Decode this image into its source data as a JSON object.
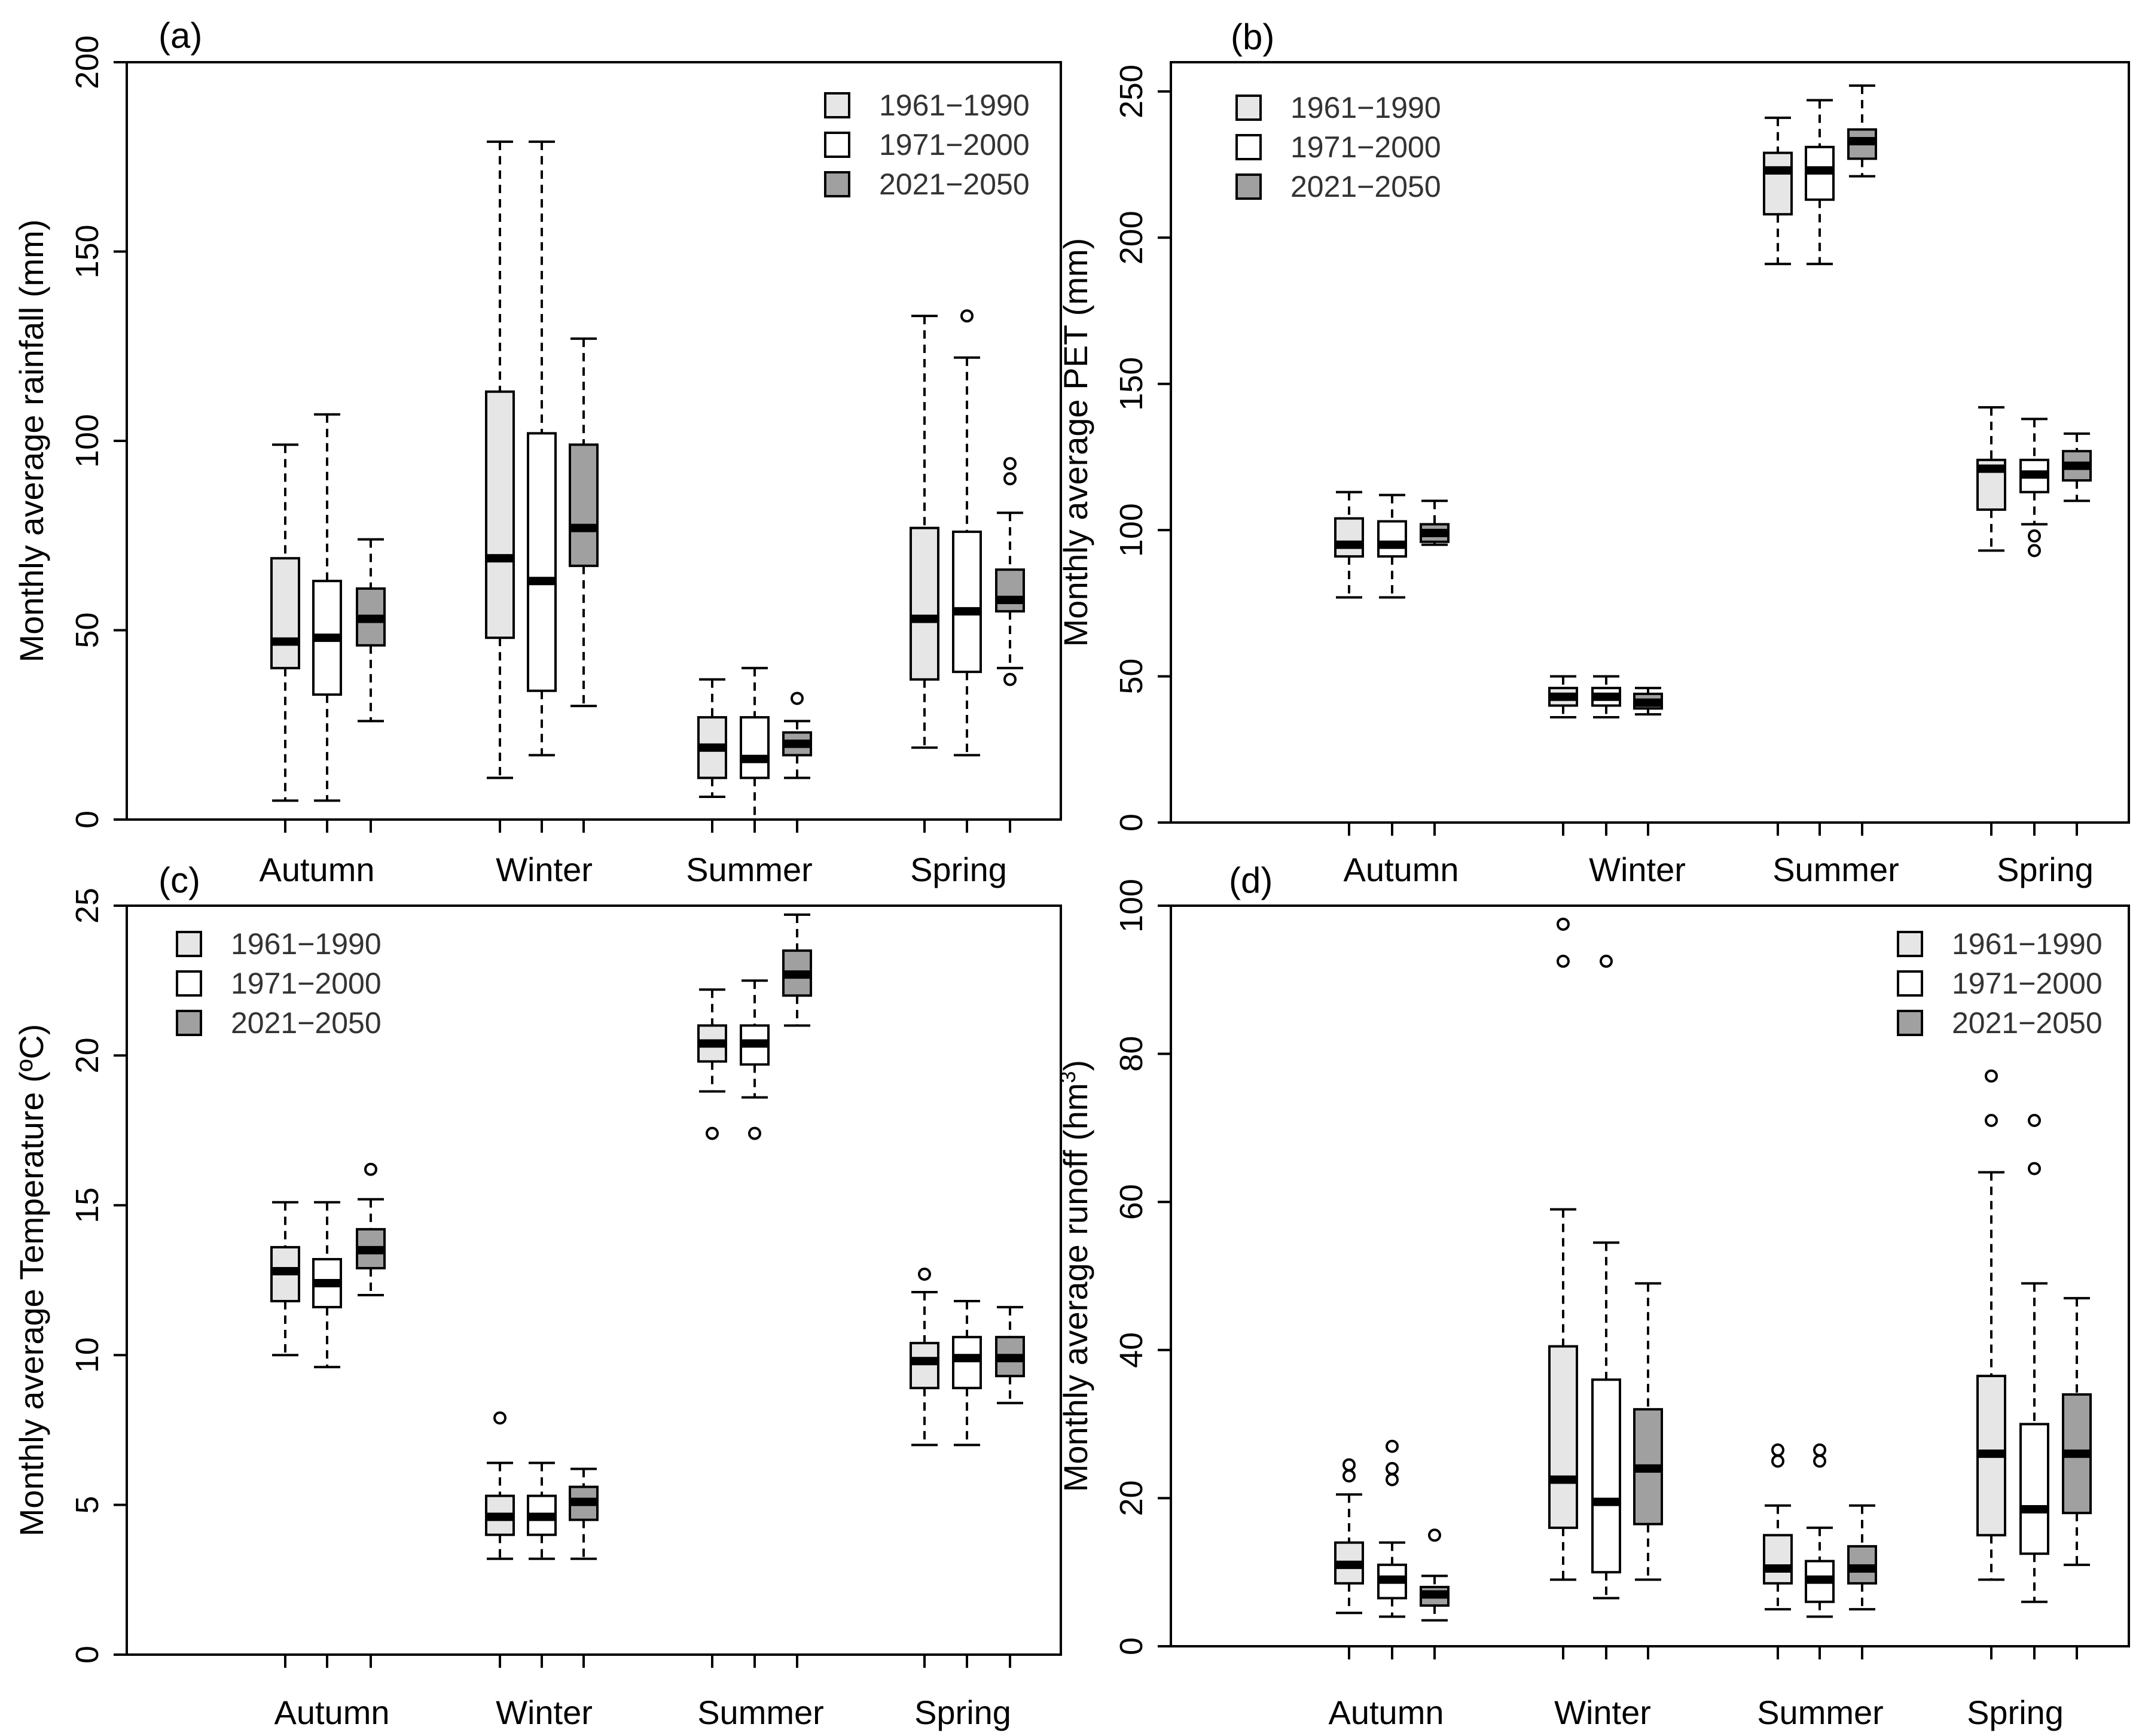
{
  "legend": {
    "entries": [
      {
        "label": "1961−1990",
        "color": "#e6e6e6"
      },
      {
        "label": "1971−2000",
        "color": "#ffffff"
      },
      {
        "label": "2021−2050",
        "color": "#a0a0a0"
      }
    ]
  },
  "categories": [
    "Autumn",
    "Winter",
    "Summer",
    "Spring"
  ],
  "chart_data": [
    {
      "type": "boxplot",
      "panel": "(a)",
      "ylabel": "Monthly average rainfall (mm)",
      "ylim": [
        0,
        200
      ],
      "yticks": [
        0,
        50,
        100,
        150,
        200
      ],
      "legend_position": "top-right",
      "series_names": [
        "1961−1990",
        "1971−2000",
        "2021−2050"
      ],
      "boxes": [
        [
          {
            "min": 5,
            "q1": 40,
            "median": 47,
            "q3": 69,
            "max": 99,
            "outliers": []
          },
          {
            "min": 5,
            "q1": 33,
            "median": 48,
            "q3": 63,
            "max": 107,
            "outliers": []
          },
          {
            "min": 26,
            "q1": 46,
            "median": 53,
            "q3": 61,
            "max": 74,
            "outliers": []
          }
        ],
        [
          {
            "min": 11,
            "q1": 48,
            "median": 69,
            "q3": 113,
            "max": 179,
            "outliers": []
          },
          {
            "min": 17,
            "q1": 34,
            "median": 63,
            "q3": 102,
            "max": 179,
            "outliers": []
          },
          {
            "min": 30,
            "q1": 67,
            "median": 77,
            "q3": 99,
            "max": 127,
            "outliers": []
          }
        ],
        [
          {
            "min": 6,
            "q1": 11,
            "median": 19,
            "q3": 27,
            "max": 37,
            "outliers": []
          },
          {
            "min": 0,
            "q1": 11,
            "median": 16,
            "q3": 27,
            "max": 40,
            "outliers": []
          },
          {
            "min": 11,
            "q1": 17,
            "median": 20,
            "q3": 23,
            "max": 26,
            "outliers": [
              32
            ]
          }
        ],
        [
          {
            "min": 19,
            "q1": 37,
            "median": 53,
            "q3": 77,
            "max": 133,
            "outliers": []
          },
          {
            "min": 17,
            "q1": 39,
            "median": 55,
            "q3": 76,
            "max": 122,
            "outliers": [
              133
            ]
          },
          {
            "min": 40,
            "q1": 55,
            "median": 58,
            "q3": 66,
            "max": 81,
            "outliers": [
              37,
              90,
              94
            ]
          }
        ]
      ]
    },
    {
      "type": "boxplot",
      "panel": "(b)",
      "ylabel": "Monthly average PET (mm)",
      "ylim": [
        0,
        260
      ],
      "yticks": [
        0,
        50,
        100,
        150,
        200,
        250
      ],
      "legend_position": "top-left",
      "series_names": [
        "1961−1990",
        "1971−2000",
        "2021−2050"
      ],
      "boxes": [
        [
          {
            "min": 77,
            "q1": 91,
            "median": 95,
            "q3": 104,
            "max": 113,
            "outliers": []
          },
          {
            "min": 77,
            "q1": 91,
            "median": 95,
            "q3": 103,
            "max": 112,
            "outliers": []
          },
          {
            "min": 95,
            "q1": 96,
            "median": 99,
            "q3": 102,
            "max": 110,
            "outliers": []
          }
        ],
        [
          {
            "min": 36,
            "q1": 40,
            "median": 43,
            "q3": 46,
            "max": 50,
            "outliers": []
          },
          {
            "min": 36,
            "q1": 40,
            "median": 43,
            "q3": 46,
            "max": 50,
            "outliers": []
          },
          {
            "min": 37,
            "q1": 39,
            "median": 41,
            "q3": 44,
            "max": 46,
            "outliers": []
          }
        ],
        [
          {
            "min": 191,
            "q1": 208,
            "median": 223,
            "q3": 229,
            "max": 241,
            "outliers": []
          },
          {
            "min": 191,
            "q1": 213,
            "median": 223,
            "q3": 231,
            "max": 247,
            "outliers": []
          },
          {
            "min": 221,
            "q1": 227,
            "median": 233,
            "q3": 237,
            "max": 252,
            "outliers": []
          }
        ],
        [
          {
            "min": 93,
            "q1": 107,
            "median": 121,
            "q3": 124,
            "max": 142,
            "outliers": []
          },
          {
            "min": 102,
            "q1": 113,
            "median": 119,
            "q3": 124,
            "max": 138,
            "outliers": [
              93,
              98
            ]
          },
          {
            "min": 110,
            "q1": 117,
            "median": 122,
            "q3": 127,
            "max": 133,
            "outliers": []
          }
        ]
      ]
    },
    {
      "type": "boxplot",
      "panel": "(c)",
      "ylabel": "Monthly average Temperature (ºC)",
      "ylim": [
        0,
        25
      ],
      "yticks": [
        0,
        5,
        10,
        15,
        20,
        25
      ],
      "legend_position": "top-left",
      "series_names": [
        "1961−1990",
        "1971−2000",
        "2021−2050"
      ],
      "boxes": [
        [
          {
            "min": 10.0,
            "q1": 11.8,
            "median": 12.8,
            "q3": 13.6,
            "max": 15.1,
            "outliers": []
          },
          {
            "min": 9.6,
            "q1": 11.6,
            "median": 12.4,
            "q3": 13.2,
            "max": 15.1,
            "outliers": []
          },
          {
            "min": 12.0,
            "q1": 12.9,
            "median": 13.5,
            "q3": 14.2,
            "max": 15.2,
            "outliers": [
              16.2
            ]
          }
        ],
        [
          {
            "min": 3.2,
            "q1": 4.0,
            "median": 4.6,
            "q3": 5.3,
            "max": 6.4,
            "outliers": [
              7.9
            ]
          },
          {
            "min": 3.2,
            "q1": 4.0,
            "median": 4.6,
            "q3": 5.3,
            "max": 6.4,
            "outliers": []
          },
          {
            "min": 3.2,
            "q1": 4.5,
            "median": 5.1,
            "q3": 5.6,
            "max": 6.2,
            "outliers": []
          }
        ],
        [
          {
            "min": 18.8,
            "q1": 19.8,
            "median": 20.4,
            "q3": 21.0,
            "max": 22.2,
            "outliers": [
              17.4
            ]
          },
          {
            "min": 18.6,
            "q1": 19.7,
            "median": 20.4,
            "q3": 21.0,
            "max": 22.5,
            "outliers": [
              17.4
            ]
          },
          {
            "min": 21.0,
            "q1": 22.0,
            "median": 22.7,
            "q3": 23.5,
            "max": 24.7,
            "outliers": []
          }
        ],
        [
          {
            "min": 7.0,
            "q1": 8.9,
            "median": 9.8,
            "q3": 10.4,
            "max": 12.1,
            "outliers": [
              12.7
            ]
          },
          {
            "min": 7.0,
            "q1": 8.9,
            "median": 9.9,
            "q3": 10.6,
            "max": 11.8,
            "outliers": []
          },
          {
            "min": 8.4,
            "q1": 9.3,
            "median": 9.9,
            "q3": 10.6,
            "max": 11.6,
            "outliers": []
          }
        ]
      ]
    },
    {
      "type": "boxplot",
      "panel": "(d)",
      "ylabel_main": "Monthly average runoff (hm",
      "ylabel_sup": "3",
      "ylabel_end": ")",
      "ylim": [
        0,
        100
      ],
      "yticks": [
        0,
        20,
        40,
        60,
        80,
        100
      ],
      "legend_position": "top-right",
      "series_names": [
        "1961−1990",
        "1971−2000",
        "2021−2050"
      ],
      "boxes": [
        [
          {
            "min": 4.5,
            "q1": 8.5,
            "median": 11,
            "q3": 14,
            "max": 20.5,
            "outliers": [
              23,
              24.5
            ]
          },
          {
            "min": 4,
            "q1": 6.5,
            "median": 9,
            "q3": 11,
            "max": 14,
            "outliers": [
              22.5,
              24,
              27
            ]
          },
          {
            "min": 3.5,
            "q1": 5.5,
            "median": 7,
            "q3": 8,
            "max": 9.5,
            "outliers": [
              15
            ]
          }
        ],
        [
          {
            "min": 9,
            "q1": 16,
            "median": 22.5,
            "q3": 40.5,
            "max": 59,
            "outliers": [
              92.5,
              97.5
            ]
          },
          {
            "min": 6.5,
            "q1": 10,
            "median": 19.5,
            "q3": 36,
            "max": 54.5,
            "outliers": [
              92.5
            ]
          },
          {
            "min": 9,
            "q1": 16.5,
            "median": 24,
            "q3": 32,
            "max": 49,
            "outliers": []
          }
        ],
        [
          {
            "min": 5,
            "q1": 8.5,
            "median": 10.5,
            "q3": 15,
            "max": 19,
            "outliers": [
              25,
              26.5
            ]
          },
          {
            "min": 4,
            "q1": 6,
            "median": 9,
            "q3": 11.5,
            "max": 16,
            "outliers": [
              25,
              26.5
            ]
          },
          {
            "min": 5,
            "q1": 8.5,
            "median": 10.5,
            "q3": 13.5,
            "max": 19,
            "outliers": []
          }
        ],
        [
          {
            "min": 9,
            "q1": 15,
            "median": 26,
            "q3": 36.5,
            "max": 64,
            "outliers": [
              71,
              77
            ]
          },
          {
            "min": 6,
            "q1": 12.5,
            "median": 18.5,
            "q3": 30,
            "max": 49,
            "outliers": [
              64.5,
              71
            ]
          },
          {
            "min": 11,
            "q1": 18,
            "median": 26,
            "q3": 34,
            "max": 47,
            "outliers": []
          }
        ]
      ]
    }
  ]
}
